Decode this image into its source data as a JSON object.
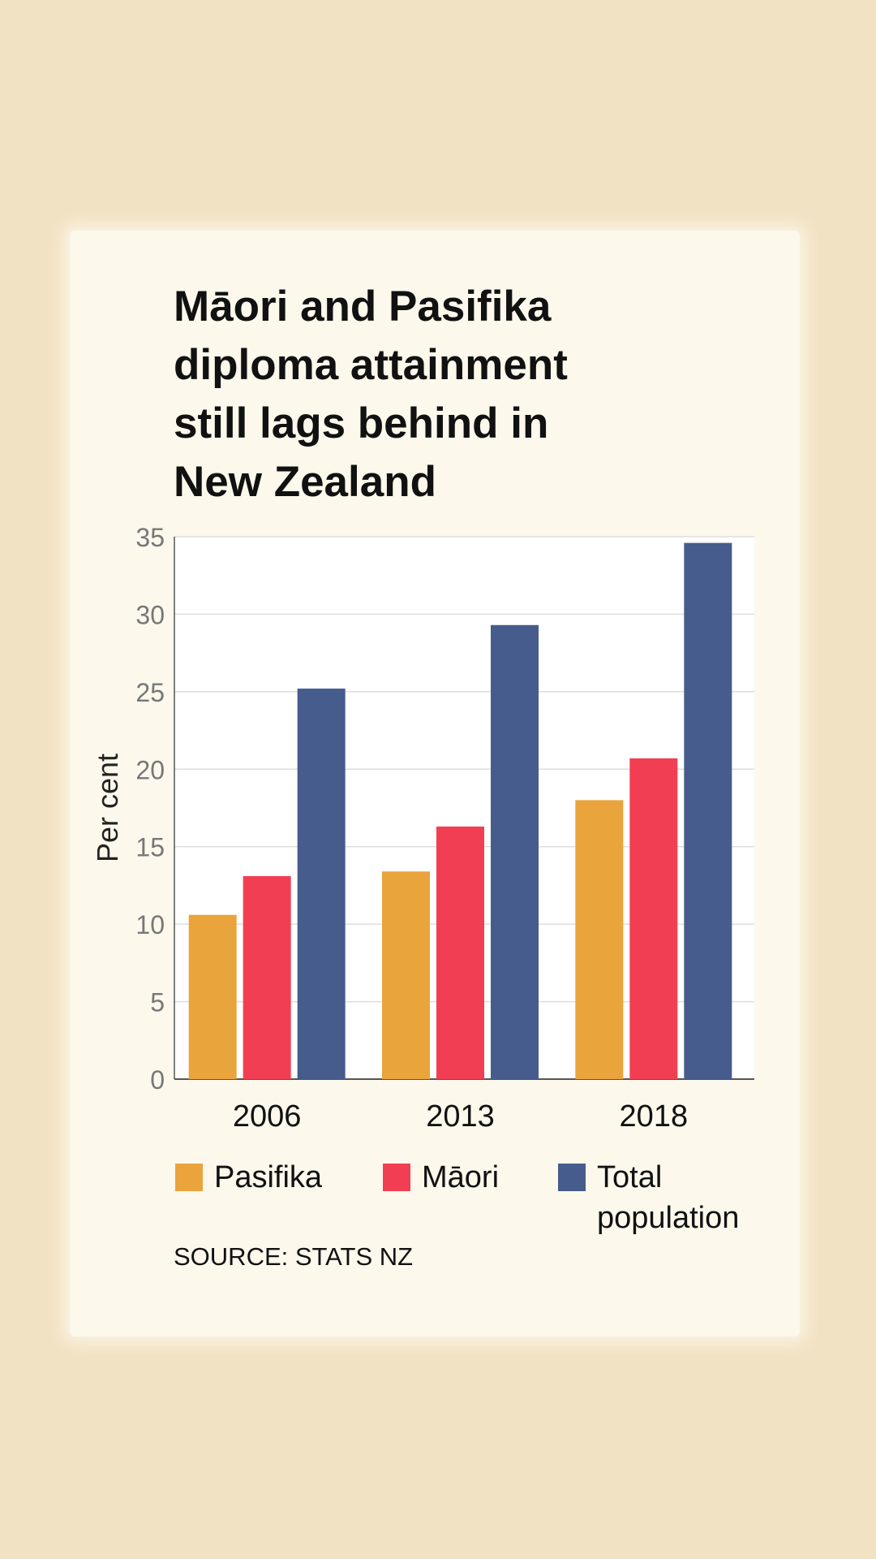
{
  "chart_data": {
    "type": "bar",
    "title": "Māori and Pasifika diploma attainment still lags behind in New Zealand",
    "title_lines": [
      "Māori and Pasifika",
      "diploma attainment",
      "still lags behind in",
      "New Zealand"
    ],
    "xlabel": "",
    "ylabel": "Per cent",
    "ylim": [
      0,
      35
    ],
    "yticks": [
      "0",
      "5",
      "10",
      "15",
      "20",
      "25",
      "30",
      "35"
    ],
    "categories": [
      "2006",
      "2013",
      "2018"
    ],
    "series": [
      {
        "name": "Pasifika",
        "color": "#E9A43B",
        "values": [
          10.6,
          13.4,
          18.0
        ]
      },
      {
        "name": "Māori",
        "color": "#F23E52",
        "values": [
          13.1,
          16.3,
          20.7
        ]
      },
      {
        "name": "Total population",
        "color": "#465C8C",
        "values": [
          25.2,
          29.3,
          34.6
        ]
      }
    ],
    "legend": {
      "placement": "bottom",
      "labels": [
        "Pasifika",
        "Māori",
        "Total population"
      ]
    },
    "grid": true
  },
  "source": "SOURCE: STATS NZ"
}
